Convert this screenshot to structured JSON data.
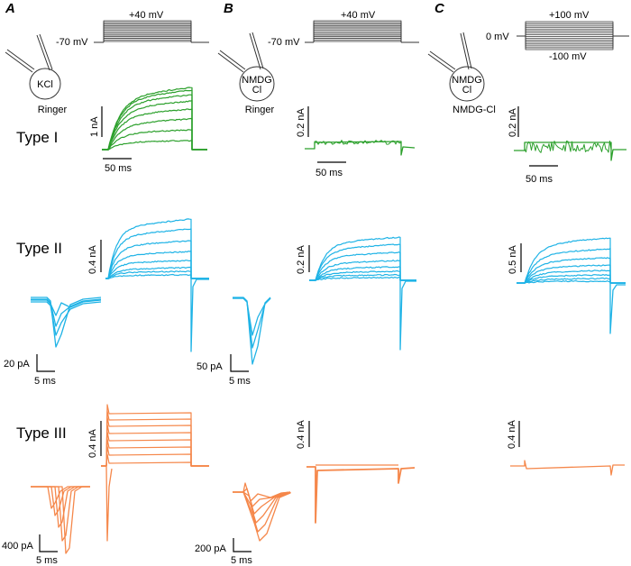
{
  "panels": {
    "a": {
      "letter": "A",
      "voltage_top": "+40 mV",
      "voltage_hold": "-70 mV",
      "cell": "KCl",
      "bath": "Ringer"
    },
    "b": {
      "letter": "B",
      "voltage_top": "+40 mV",
      "voltage_hold": "-70 mV",
      "cell_line1": "NMDG",
      "cell_line2": "Cl",
      "bath": "Ringer"
    },
    "c": {
      "letter": "C",
      "voltage_top": "+100 mV",
      "voltage_hold": "0 mV",
      "voltage_bottom": "-100 mV",
      "cell_line1": "NMDG",
      "cell_line2": "Cl",
      "bath": "NMDG-Cl"
    }
  },
  "rows": {
    "type1": {
      "label": "Type I",
      "a_scale": "1 nA",
      "b_scale": "0.2 nA",
      "c_scale": "0.2 nA",
      "time": "50 ms"
    },
    "type2": {
      "label": "Type II",
      "a_scale": "0.4 nA",
      "b_scale": "0.2 nA",
      "c_scale": "0.5 nA",
      "inset_a_scale": "20 pA",
      "inset_b_scale": "50 pA",
      "inset_time": "5 ms"
    },
    "type3": {
      "label": "Type III",
      "a_scale": "0.4 nA",
      "b_scale": "0.4 nA",
      "c_scale": "0.4 nA",
      "inset_a_scale": "400 pA",
      "inset_b_scale": "200 pA",
      "inset_time": "5 ms"
    }
  },
  "colors": {
    "type1": "#2ca02c",
    "type2": "#1fb3e6",
    "type3": "#f5874a",
    "protocol": "#555555"
  }
}
